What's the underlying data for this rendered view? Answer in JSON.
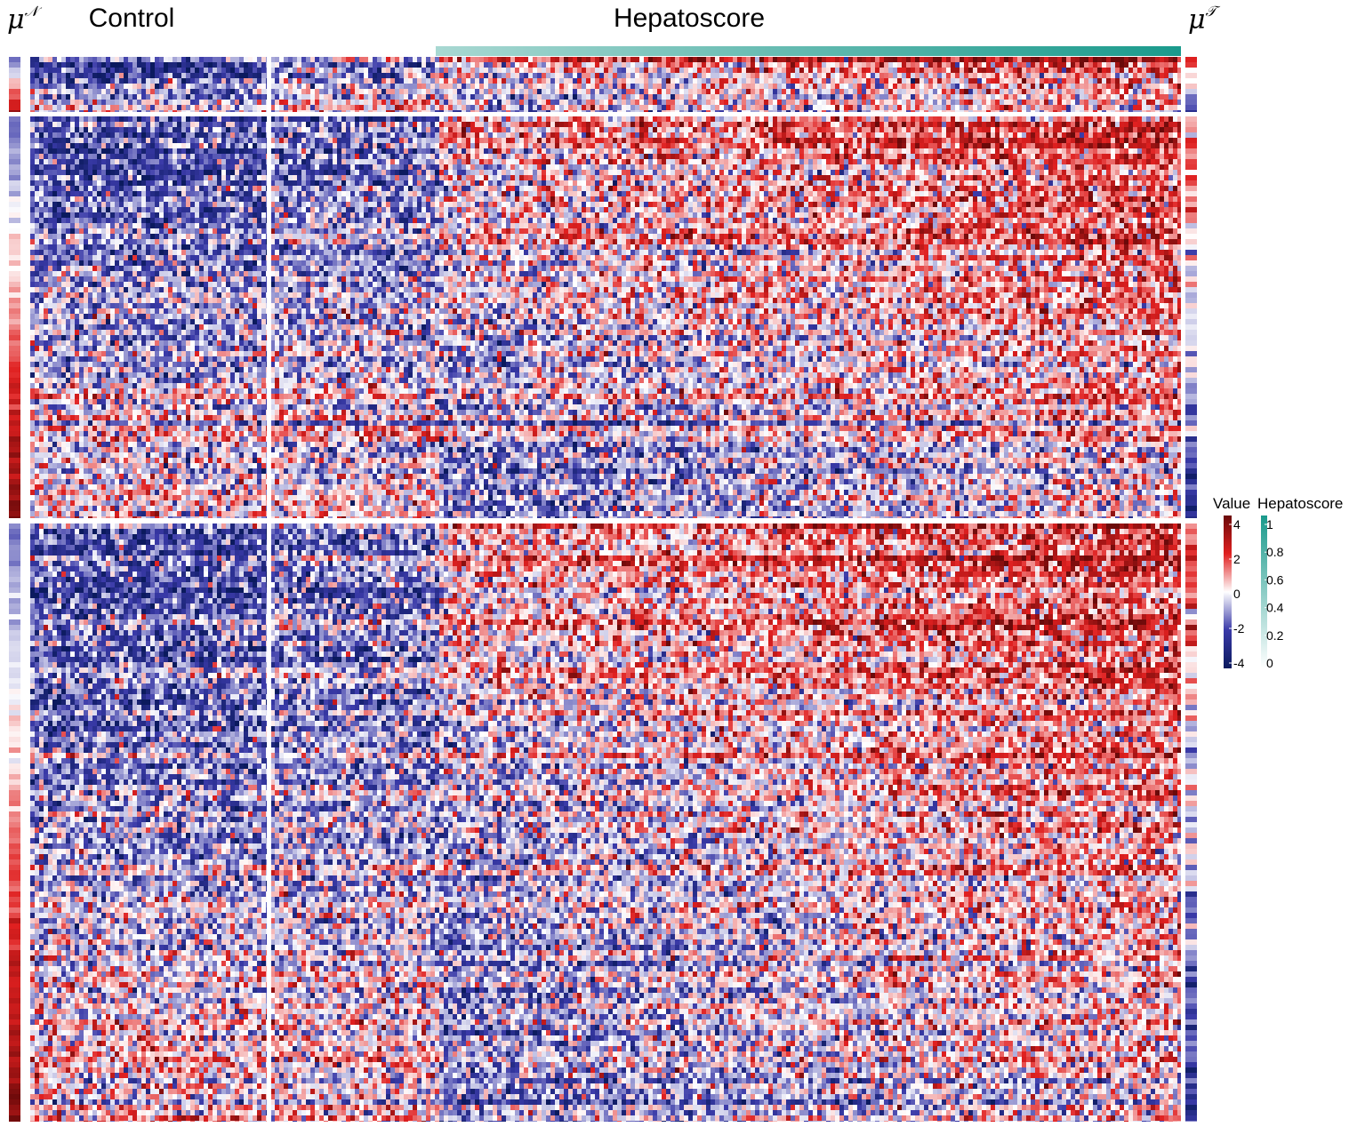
{
  "chart_data": {
    "type": "heatmap",
    "column_groups": [
      {
        "label": "Control"
      },
      {
        "label": "Hepatoscore"
      }
    ],
    "left_annotation": {
      "label": "μ",
      "superscript": "𝒩"
    },
    "right_annotation": {
      "label": "μ",
      "superscript": "𝒯"
    },
    "row_blocks": 3,
    "legends": [
      {
        "title": "Value",
        "range": [
          -4,
          4
        ],
        "ticks": [
          "4",
          "2",
          "0",
          "-2",
          "-4"
        ],
        "colors": [
          "#0b1a5e",
          "#3a3aa8",
          "#ffffff",
          "#e02020",
          "#6b0a0a"
        ]
      },
      {
        "title": "Hepatoscore",
        "range": [
          0,
          1
        ],
        "ticks": [
          "1",
          "0.8",
          "0.6",
          "0.4",
          "0.2",
          "0"
        ],
        "colors": [
          "#ffffff",
          "#1a9a8c"
        ]
      }
    ]
  }
}
